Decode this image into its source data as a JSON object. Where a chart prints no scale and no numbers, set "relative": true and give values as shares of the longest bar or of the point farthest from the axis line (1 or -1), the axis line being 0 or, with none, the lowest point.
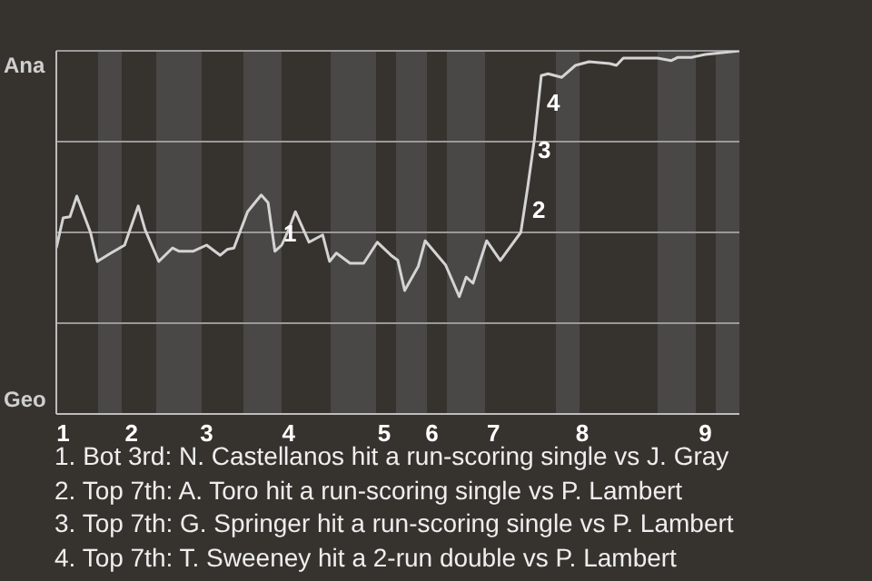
{
  "chart_data": {
    "type": "line",
    "relative": true,
    "categories": [
      null,
      "1",
      null,
      null,
      null,
      null,
      null,
      null,
      null,
      null,
      null,
      "2",
      null,
      null,
      null,
      null,
      null,
      null,
      null,
      null,
      null,
      null,
      "3",
      null,
      null,
      null,
      null,
      null,
      null,
      null,
      null,
      null,
      null,
      null,
      "4",
      null,
      null,
      null,
      null,
      null,
      null,
      null,
      null,
      null,
      null,
      null,
      null,
      null,
      "5",
      null,
      null,
      null,
      null,
      null,
      null,
      "6",
      null,
      null,
      null,
      null,
      null,
      null,
      null,
      null,
      "7",
      null,
      null,
      null,
      null,
      null,
      null,
      null,
      null,
      null,
      null,
      null,
      null,
      "8",
      null,
      null,
      null,
      null,
      null,
      null,
      null,
      null,
      null,
      null,
      null,
      null,
      null,
      null,
      null,
      null,
      null,
      "9",
      null,
      null,
      null,
      null,
      null
    ],
    "series": [
      {
        "color": "#d4d4d4",
        "values": [
          0.457,
          0.54,
          0.543,
          0.6,
          null,
          0.5,
          0.42,
          null,
          0.443,
          null,
          0.465,
          null,
          0.573,
          0.507,
          null,
          0.42,
          null,
          0.457,
          0.448,
          null,
          0.448,
          null,
          0.465,
          null,
          0.437,
          0.453,
          0.457,
          null,
          0.557,
          null,
          0.603,
          0.582,
          0.448,
          0.465,
          0.507,
          0.557,
          null,
          0.473,
          null,
          0.493,
          0.42,
          0.443,
          null,
          0.415,
          null,
          0.415,
          null,
          0.473,
          null,
          0.437,
          0.423,
          0.34,
          null,
          0.407,
          0.477,
          null,
          null,
          0.41,
          null,
          0.323,
          0.377,
          0.36,
          null,
          0.477,
          null,
          0.423,
          null,
          null,
          0.5,
          0.623,
          0.757,
          0.932,
          0.937,
          null,
          0.927,
          null,
          0.96,
          null,
          0.97,
          null,
          null,
          0.965,
          0.96,
          0.98,
          null,
          null,
          null,
          null,
          0.98,
          null,
          0.973,
          0.982,
          null,
          0.982,
          null,
          0.99,
          null,
          null,
          null,
          null,
          1
        ]
      }
    ],
    "marker": "none",
    "ref_lines": [
      {
        "axis": "y",
        "value": 0.25,
        "color": "#9a9a9a"
      },
      {
        "axis": "y",
        "value": 0.5,
        "color": "#9a9a9a"
      },
      {
        "axis": "y",
        "value": 0.75,
        "color": "#9a9a9a"
      },
      {
        "axis": "y",
        "value": 1,
        "color": "#9a9a9a"
      }
    ],
    "annotations": [
      "Ana",
      "Geo",
      "1",
      "2",
      "3",
      "4",
      "1. Bot 3rd: N. Castellanos hit a run-scoring single vs J. Gray",
      "2. Top 7th: A. Toro hit a run-scoring single vs P. Lambert",
      "3. Top 7th: G. Springer hit a run-scoring single vs P. Lambert",
      "4. Top 7th: T. Sweeney hit a 2-run double vs P. Lambert"
    ]
  }
}
